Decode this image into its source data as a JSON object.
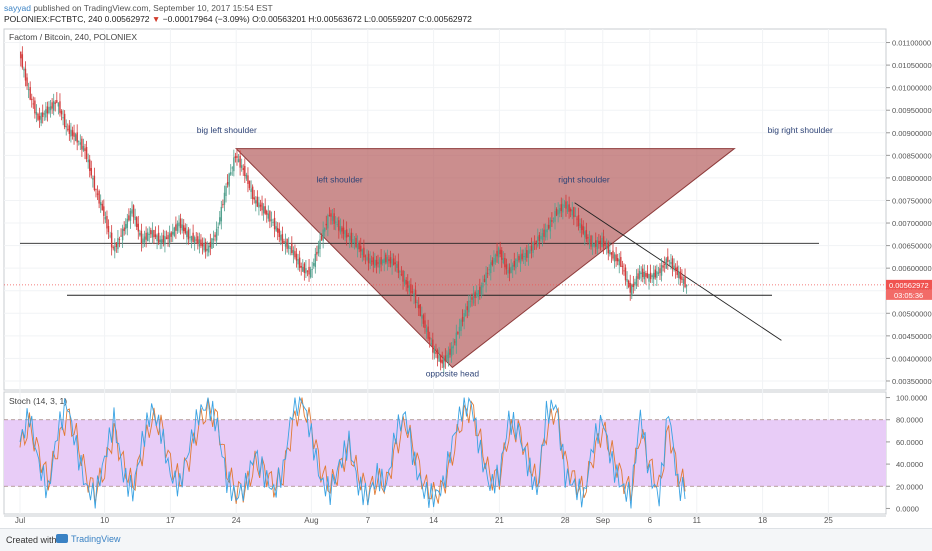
{
  "header": {
    "author": "sayyad",
    "published": "published on TradingView.com, September 10, 2017 15:54 EST",
    "symbol_line": "POLONIEX:FCTBTC, 240",
    "last": "0.00562972",
    "change": "−0.00017964 (−3.09%)",
    "ohlc": "O:0.00563201 H:0.00563672 L:0.00559207 C:0.00562972"
  },
  "chart_data": {
    "type": "line",
    "title": "Factom / Bitcoin, 240, POLONIEX",
    "price_axis": {
      "ticks": [
        "0.01100000",
        "0.01050000",
        "0.01000000",
        "0.00950000",
        "0.00900000",
        "0.00850000",
        "0.00800000",
        "0.00750000",
        "0.00700000",
        "0.00650000",
        "0.00600000",
        "0.00550000",
        "0.00500000",
        "0.00450000",
        "0.00400000",
        "0.00350000"
      ],
      "ylim": [
        0.0033,
        0.0113
      ]
    },
    "last_price_label": "0.00562972",
    "countdown_label": "03:05:36",
    "x_ticks": [
      {
        "label": "Jul",
        "day": 0
      },
      {
        "label": "10",
        "day": 9
      },
      {
        "label": "17",
        "day": 16
      },
      {
        "label": "24",
        "day": 23
      },
      {
        "label": "Aug",
        "day": 31
      },
      {
        "label": "7",
        "day": 37
      },
      {
        "label": "14",
        "day": 44
      },
      {
        "label": "21",
        "day": 51
      },
      {
        "label": "28",
        "day": 58
      },
      {
        "label": "Sep",
        "day": 62
      },
      {
        "label": "6",
        "day": 67
      },
      {
        "label": "11",
        "day": 72
      },
      {
        "label": "18",
        "day": 79
      },
      {
        "label": "25",
        "day": 86
      }
    ],
    "price_series": [
      {
        "day": 0,
        "v": 0.0108
      },
      {
        "day": 1,
        "v": 0.0099
      },
      {
        "day": 2,
        "v": 0.0093
      },
      {
        "day": 3,
        "v": 0.0095
      },
      {
        "day": 4,
        "v": 0.0097
      },
      {
        "day": 5,
        "v": 0.0091
      },
      {
        "day": 6,
        "v": 0.0089
      },
      {
        "day": 7,
        "v": 0.0086
      },
      {
        "day": 8,
        "v": 0.0078
      },
      {
        "day": 9,
        "v": 0.0072
      },
      {
        "day": 10,
        "v": 0.0064
      },
      {
        "day": 11,
        "v": 0.0068
      },
      {
        "day": 12,
        "v": 0.0073
      },
      {
        "day": 13,
        "v": 0.0066
      },
      {
        "day": 14,
        "v": 0.0068
      },
      {
        "day": 15,
        "v": 0.0066
      },
      {
        "day": 16,
        "v": 0.0067
      },
      {
        "day": 17,
        "v": 0.007
      },
      {
        "day": 18,
        "v": 0.0067
      },
      {
        "day": 19,
        "v": 0.0066
      },
      {
        "day": 20,
        "v": 0.0064
      },
      {
        "day": 21,
        "v": 0.0068
      },
      {
        "day": 22,
        "v": 0.0078
      },
      {
        "day": 23,
        "v": 0.0085
      },
      {
        "day": 24,
        "v": 0.0081
      },
      {
        "day": 25,
        "v": 0.0075
      },
      {
        "day": 26,
        "v": 0.0073
      },
      {
        "day": 27,
        "v": 0.007
      },
      {
        "day": 28,
        "v": 0.0066
      },
      {
        "day": 29,
        "v": 0.0064
      },
      {
        "day": 30,
        "v": 0.006
      },
      {
        "day": 31,
        "v": 0.0059
      },
      {
        "day": 32,
        "v": 0.0066
      },
      {
        "day": 33,
        "v": 0.0072
      },
      {
        "day": 34,
        "v": 0.0069
      },
      {
        "day": 35,
        "v": 0.0067
      },
      {
        "day": 36,
        "v": 0.0065
      },
      {
        "day": 37,
        "v": 0.0062
      },
      {
        "day": 38,
        "v": 0.0061
      },
      {
        "day": 39,
        "v": 0.0062
      },
      {
        "day": 40,
        "v": 0.0061
      },
      {
        "day": 41,
        "v": 0.0057
      },
      {
        "day": 42,
        "v": 0.0054
      },
      {
        "day": 43,
        "v": 0.0048
      },
      {
        "day": 44,
        "v": 0.0042
      },
      {
        "day": 45,
        "v": 0.0039
      },
      {
        "day": 46,
        "v": 0.0042
      },
      {
        "day": 47,
        "v": 0.0048
      },
      {
        "day": 48,
        "v": 0.0053
      },
      {
        "day": 49,
        "v": 0.0055
      },
      {
        "day": 50,
        "v": 0.006
      },
      {
        "day": 51,
        "v": 0.0064
      },
      {
        "day": 52,
        "v": 0.0059
      },
      {
        "day": 53,
        "v": 0.0062
      },
      {
        "day": 54,
        "v": 0.0063
      },
      {
        "day": 55,
        "v": 0.0066
      },
      {
        "day": 56,
        "v": 0.0068
      },
      {
        "day": 57,
        "v": 0.0072
      },
      {
        "day": 58,
        "v": 0.0074
      },
      {
        "day": 59,
        "v": 0.0072
      },
      {
        "day": 60,
        "v": 0.0068
      },
      {
        "day": 61,
        "v": 0.0065
      },
      {
        "day": 62,
        "v": 0.0066
      },
      {
        "day": 63,
        "v": 0.0063
      },
      {
        "day": 64,
        "v": 0.0061
      },
      {
        "day": 65,
        "v": 0.0055
      },
      {
        "day": 66,
        "v": 0.0059
      },
      {
        "day": 67,
        "v": 0.0058
      },
      {
        "day": 68,
        "v": 0.0059
      },
      {
        "day": 69,
        "v": 0.0062
      },
      {
        "day": 70,
        "v": 0.0059
      },
      {
        "day": 71,
        "v": 0.0056
      }
    ],
    "annotations": [
      {
        "text": "big left shoulder",
        "day": 22,
        "price": 0.009
      },
      {
        "text": "left shoulder",
        "day": 34,
        "price": 0.0079
      },
      {
        "text": "right shoulder",
        "day": 60,
        "price": 0.0079
      },
      {
        "text": "big right shoulder",
        "day": 83,
        "price": 0.009
      },
      {
        "text": "opposite head",
        "day": 46,
        "price": 0.0036
      }
    ],
    "triangle": [
      {
        "day": 23,
        "price": 0.00865
      },
      {
        "day": 76,
        "price": 0.00865
      },
      {
        "day": 46,
        "price": 0.0038
      }
    ],
    "lines": [
      {
        "name": "upper-horizontal",
        "d1": 0,
        "p1": 0.00655,
        "d2": 85,
        "p2": 0.00655
      },
      {
        "name": "lower-horizontal",
        "d1": 5,
        "p1": 0.0054,
        "d2": 80,
        "p2": 0.0054
      },
      {
        "name": "downtrend",
        "d1": 59,
        "p1": 0.00745,
        "d2": 81,
        "p2": 0.0044
      }
    ],
    "stoch": {
      "title": "Stoch (14, 3, 1)",
      "ticks": [
        "100.0000",
        "80.0000",
        "60.0000",
        "40.0000",
        "20.0000",
        "0.0000"
      ],
      "ylim": [
        -5,
        105
      ],
      "band": [
        20,
        80
      ],
      "k": [
        60,
        85,
        40,
        15,
        70,
        95,
        55,
        20,
        10,
        45,
        80,
        30,
        15,
        60,
        90,
        70,
        30,
        20,
        55,
        85,
        95,
        75,
        25,
        10,
        20,
        50,
        30,
        15,
        35,
        90,
        100,
        65,
        25,
        15,
        40,
        60,
        20,
        10,
        30,
        20,
        70,
        85,
        40,
        15,
        10,
        20,
        60,
        90,
        95,
        50,
        20,
        30,
        80,
        70,
        40,
        15,
        85,
        95,
        30,
        20,
        10,
        60,
        80,
        40,
        20,
        10,
        85,
        30,
        10,
        90,
        20,
        15
      ],
      "d": [
        55,
        75,
        50,
        25,
        55,
        85,
        65,
        30,
        15,
        35,
        70,
        40,
        20,
        50,
        80,
        75,
        40,
        25,
        45,
        75,
        90,
        80,
        35,
        15,
        18,
        40,
        35,
        20,
        30,
        75,
        95,
        75,
        35,
        20,
        35,
        55,
        30,
        15,
        25,
        22,
        55,
        78,
        50,
        22,
        12,
        18,
        48,
        80,
        92,
        60,
        28,
        28,
        68,
        72,
        48,
        22,
        70,
        90,
        42,
        25,
        15,
        48,
        72,
        50,
        28,
        15,
        70,
        40,
        18,
        72,
        30,
        18
      ]
    },
    "colors": {
      "up": "#53a08e",
      "down": "#d23a3a",
      "triangle_fill": "#b25858",
      "band": "#e8ccf7",
      "k_line": "#3aa3e3",
      "d_line": "#e07a35",
      "price_tag": "#f05350",
      "annotation": "#2f4477"
    }
  },
  "footer": {
    "created_with": "Created with",
    "brand": "TradingView"
  }
}
